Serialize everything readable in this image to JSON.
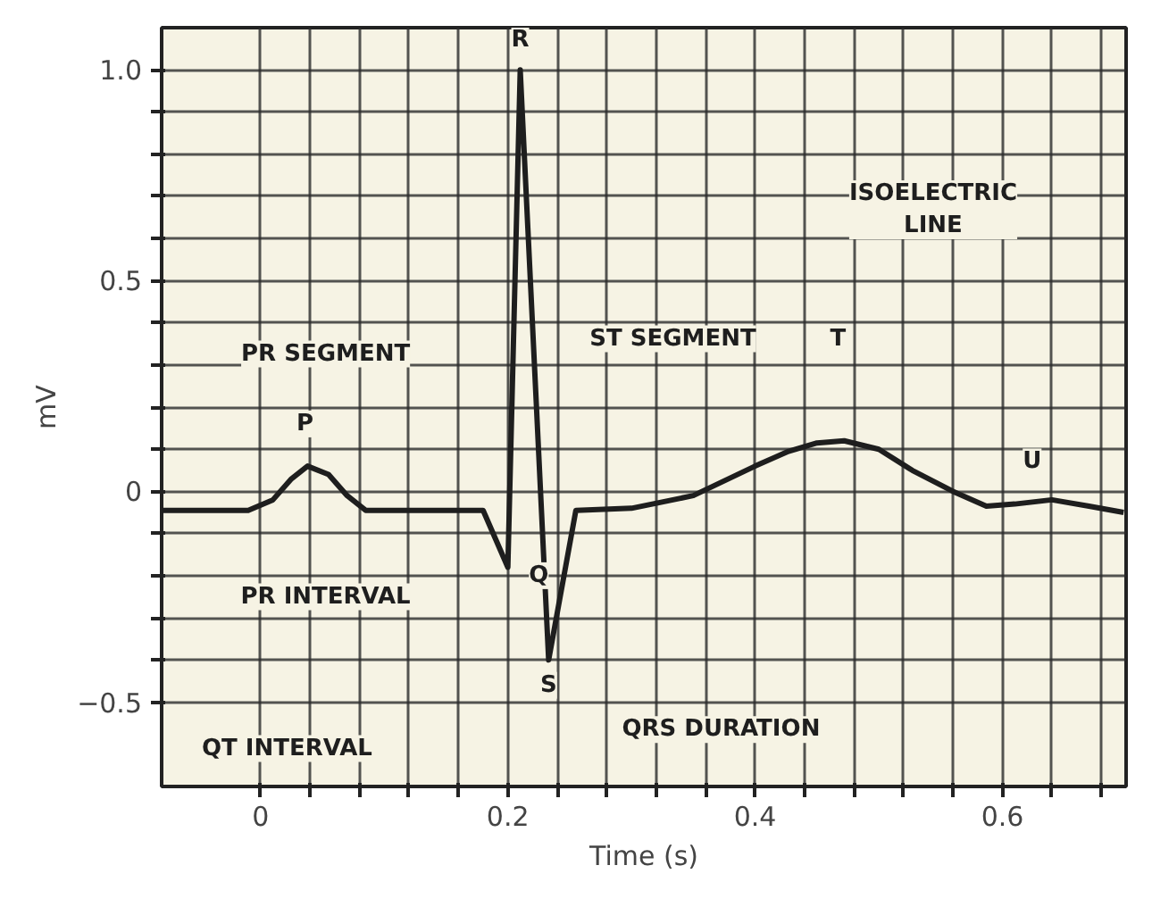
{
  "chart_data": {
    "type": "line",
    "xlabel": "Time (s)",
    "ylabel": "mV",
    "x": [
      -0.08,
      -0.01,
      0.01,
      0.025,
      0.038,
      0.055,
      0.07,
      0.085,
      0.18,
      0.2,
      0.21,
      0.233,
      0.255,
      0.3,
      0.35,
      0.4,
      0.427,
      0.45,
      0.472,
      0.5,
      0.527,
      0.56,
      0.587,
      0.61,
      0.64,
      0.67,
      0.698
    ],
    "series": [
      {
        "color": "#1e1e1e",
        "values": [
          -0.045,
          -0.045,
          -0.02,
          0.03,
          0.06,
          0.04,
          -0.01,
          -0.045,
          -0.045,
          -0.18,
          1.0,
          -0.4,
          -0.045,
          -0.04,
          -0.01,
          0.06,
          0.095,
          0.115,
          0.12,
          0.1,
          0.05,
          0.0,
          -0.035,
          -0.03,
          -0.02,
          -0.035,
          -0.05
        ]
      }
    ],
    "xlim": [
      -0.08,
      0.7
    ],
    "ylim": [
      -0.7,
      1.1
    ],
    "xticks": [
      {
        "value": 0,
        "label": "0"
      },
      {
        "value": 0.04,
        "label": null
      },
      {
        "value": 0.08,
        "label": null
      },
      {
        "value": 0.12,
        "label": null
      },
      {
        "value": 0.16,
        "label": null
      },
      0.2,
      {
        "value": 0.24,
        "label": null
      },
      {
        "value": 0.28,
        "label": null
      },
      {
        "value": 0.32,
        "label": null
      },
      {
        "value": 0.36,
        "label": null
      },
      0.4,
      {
        "value": 0.44,
        "label": null
      },
      {
        "value": 0.48,
        "label": null
      },
      {
        "value": 0.52,
        "label": null
      },
      {
        "value": 0.56,
        "label": null
      },
      0.6,
      {
        "value": 0.64,
        "label": null
      },
      {
        "value": 0.68,
        "label": null
      }
    ],
    "yticks": [
      {
        "value": -0.5,
        "label": "−0.5"
      },
      {
        "value": -0.4,
        "label": null
      },
      {
        "value": -0.3,
        "label": null
      },
      {
        "value": -0.2,
        "label": null
      },
      {
        "value": -0.1,
        "label": null
      },
      {
        "value": 0,
        "label": "0"
      },
      {
        "value": 0.1,
        "label": null
      },
      {
        "value": 0.2,
        "label": null
      },
      {
        "value": 0.3,
        "label": null
      },
      {
        "value": 0.4,
        "label": null
      },
      0.5,
      {
        "value": 0.6,
        "label": null
      },
      {
        "value": 0.7,
        "label": null
      },
      {
        "value": 0.8,
        "label": null
      },
      {
        "value": 0.9,
        "label": null
      },
      {
        "value": 1.0,
        "label": "1.0"
      }
    ],
    "grid": true,
    "line_style": "solid",
    "annotations": [
      {
        "text": "R",
        "x": 0.21,
        "y": 1.07
      },
      {
        "text": "P",
        "x": 0.036,
        "y": 0.16
      },
      {
        "text": "Q",
        "x": 0.225,
        "y": -0.2
      },
      {
        "text": "S",
        "x": 0.233,
        "y": -0.46
      },
      {
        "text": "T",
        "x": 0.467,
        "y": 0.36
      },
      {
        "text": "U",
        "x": 0.624,
        "y": 0.07
      },
      "PR SEGMENT",
      "PR INTERVAL",
      "ST SEGMENT",
      "ISOELECTRIC\nLINE",
      "QRS DURATION",
      "QT INTERVAL"
    ]
  }
}
